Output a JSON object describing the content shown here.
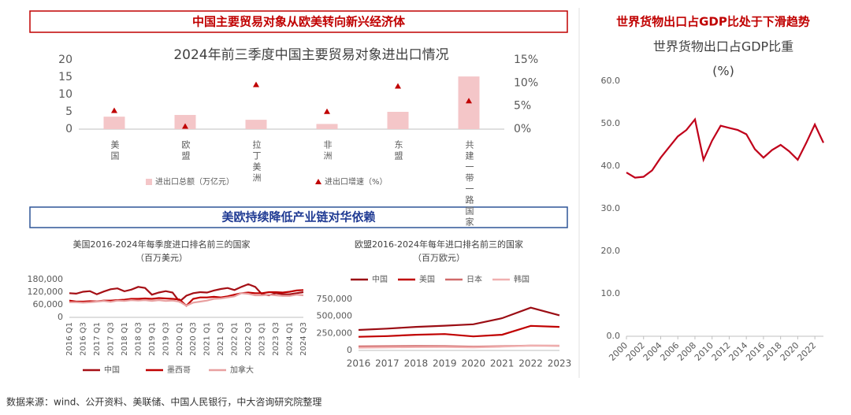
{
  "headers": {
    "left_top": "中国主要贸易对象从欧美转向新兴经济体",
    "left_middle": "美欧持续降低产业链对华依赖",
    "right_top": "世界货物出口占GDP比处于下滑趋势"
  },
  "source": "数据来源：wind、公开资料、美联储、中国人民银行，中大咨询研究院整理",
  "chart_data": [
    {
      "type": "bar",
      "title": "2024年前三季度中国主要贸易对象进出口情况",
      "categories": [
        "美国",
        "欧盟",
        "拉丁美洲",
        "非洲",
        "东盟",
        "共建一带一路国家"
      ],
      "series": [
        {
          "name": "进出口总额（万亿元）",
          "type": "bar",
          "color": "#f4c6c8",
          "values": [
            3.6,
            4.1,
            2.7,
            1.5,
            5.0,
            15.2
          ]
        },
        {
          "name": "进出口增速（%）",
          "type": "scatter",
          "axis": "y2",
          "color": "#c00000",
          "values": [
            4.0,
            0.6,
            9.6,
            3.8,
            9.3,
            6.1
          ]
        }
      ],
      "ylim": [
        0,
        20
      ],
      "yticks": [
        0,
        5,
        10,
        15,
        20
      ],
      "y2lim": [
        0,
        15
      ],
      "y2ticks": [
        {
          "value": 0,
          "label": "0%"
        },
        {
          "value": 5,
          "label": "5%"
        },
        {
          "value": 10,
          "label": "10%"
        },
        {
          "value": 15,
          "label": "15%"
        }
      ],
      "legend": "bottom"
    },
    {
      "type": "line",
      "title": "美国2016-2024年每季度进口排名前三的国家",
      "subtitle": "（百万美元）",
      "categories": [
        "2016 Q1",
        null,
        "2016 Q3",
        null,
        "2017 Q1",
        null,
        "2017 Q3",
        null,
        "2018 Q1",
        null,
        "2018 Q3",
        null,
        "2019 Q1",
        null,
        "2019 Q3",
        null,
        "2020 Q1",
        null,
        "2020 Q3",
        null,
        "2021 Q1",
        null,
        "2021 Q3",
        null,
        "2022 Q1",
        null,
        "2022 Q3",
        null,
        "2023 Q1",
        null,
        "2023 Q3",
        null,
        "2024 Q1",
        null,
        "2024 Q3"
      ],
      "series": [
        {
          "name": "中国",
          "color": "#a50f15",
          "values": [
            115000,
            113000,
            122000,
            125000,
            110000,
            123000,
            134000,
            138000,
            124000,
            132000,
            145000,
            140000,
            108000,
            118000,
            125000,
            118000,
            75000,
            103000,
            115000,
            120000,
            118000,
            128000,
            135000,
            140000,
            130000,
            145000,
            158000,
            145000,
            110000,
            105000,
            115000,
            110000,
            110000,
            115000,
            120000
          ]
        },
        {
          "name": "墨西哥",
          "color": "#c00000",
          "values": [
            80000,
            75000,
            75000,
            77000,
            76000,
            80000,
            80000,
            82000,
            84000,
            88000,
            88000,
            90000,
            88000,
            92000,
            90000,
            88000,
            85000,
            55000,
            88000,
            95000,
            95000,
            98000,
            95000,
            100000,
            108000,
            115000,
            118000,
            115000,
            115000,
            120000,
            120000,
            118000,
            122000,
            128000,
            130000
          ]
        },
        {
          "name": "加拿大",
          "color": "#e8a0a0",
          "values": [
            72000,
            72000,
            70000,
            72000,
            75000,
            78000,
            74000,
            80000,
            78000,
            82000,
            80000,
            82000,
            78000,
            82000,
            78000,
            80000,
            75000,
            55000,
            70000,
            75000,
            80000,
            88000,
            90000,
            95000,
            100000,
            115000,
            112000,
            105000,
            105000,
            108000,
            105000,
            102000,
            102000,
            108000,
            105000
          ]
        }
      ],
      "ylim": [
        0,
        180000
      ],
      "yticks": [
        0,
        {
          "value": 60000,
          "label": "60,000"
        },
        {
          "value": 120000,
          "label": "120,000"
        },
        {
          "value": 180000,
          "label": "180,000"
        }
      ],
      "legend": "bottom"
    },
    {
      "type": "line",
      "title": "欧盟2016-2024年每年进口排名前三的国家",
      "subtitle": "（百万欧元）",
      "categories": [
        "2016",
        "2017",
        "2018",
        "2019",
        "2020",
        "2021",
        "2022",
        "2023"
      ],
      "series": [
        {
          "name": "中国",
          "color": "#9b0d14",
          "values": [
            300000,
            320000,
            345000,
            362000,
            383000,
            472000,
            626000,
            515000
          ]
        },
        {
          "name": "美国",
          "color": "#c00000",
          "values": [
            200000,
            210000,
            230000,
            240000,
            205000,
            230000,
            360000,
            345000
          ]
        },
        {
          "name": "日本",
          "color": "#d06a6a",
          "values": [
            60000,
            62000,
            65000,
            64000,
            55000,
            62000,
            70000,
            68000
          ]
        },
        {
          "name": "韩国",
          "color": "#f0b0b0",
          "values": [
            40000,
            45000,
            48000,
            50000,
            45000,
            55000,
            70000,
            72000
          ]
        }
      ],
      "ylim": [
        0,
        750000
      ],
      "yticks": [
        0,
        {
          "value": 250000,
          "label": "250,000"
        },
        {
          "value": 500000,
          "label": "500,000"
        },
        {
          "value": 750000,
          "label": "750,000"
        }
      ],
      "legend": "top"
    },
    {
      "type": "line",
      "title": "世界货物出口占GDP比重",
      "subtitle": "(%)",
      "x": [
        2000,
        2001,
        2002,
        2003,
        2004,
        2005,
        2006,
        2007,
        2008,
        2009,
        2010,
        2011,
        2012,
        2013,
        2014,
        2015,
        2016,
        2017,
        2018,
        2019,
        2020,
        2021,
        2022,
        2023
      ],
      "series": [
        {
          "name": null,
          "color": "#c0001a",
          "values": [
            38.5,
            37.3,
            37.5,
            39.0,
            42.0,
            44.5,
            47.0,
            48.5,
            51.0,
            41.5,
            46.0,
            49.5,
            49.0,
            48.5,
            47.5,
            44.0,
            42.0,
            43.8,
            45.0,
            43.5,
            41.5,
            45.5,
            49.8,
            45.5
          ]
        }
      ],
      "xlim": [
        2000,
        2023
      ],
      "xticks": [
        2000,
        2002,
        2004,
        2006,
        2008,
        2010,
        2012,
        2014,
        2016,
        2018,
        2020,
        2022
      ],
      "ylim": [
        0,
        60
      ],
      "yticks": [
        {
          "value": 0,
          "label": "0.0"
        },
        {
          "value": 10,
          "label": "10.0"
        },
        {
          "value": 20,
          "label": "20.0"
        },
        {
          "value": 30,
          "label": "30.0"
        },
        {
          "value": 40,
          "label": "40.0"
        },
        {
          "value": 50,
          "label": "50.0"
        },
        {
          "value": 60,
          "label": "60.0"
        }
      ]
    }
  ]
}
